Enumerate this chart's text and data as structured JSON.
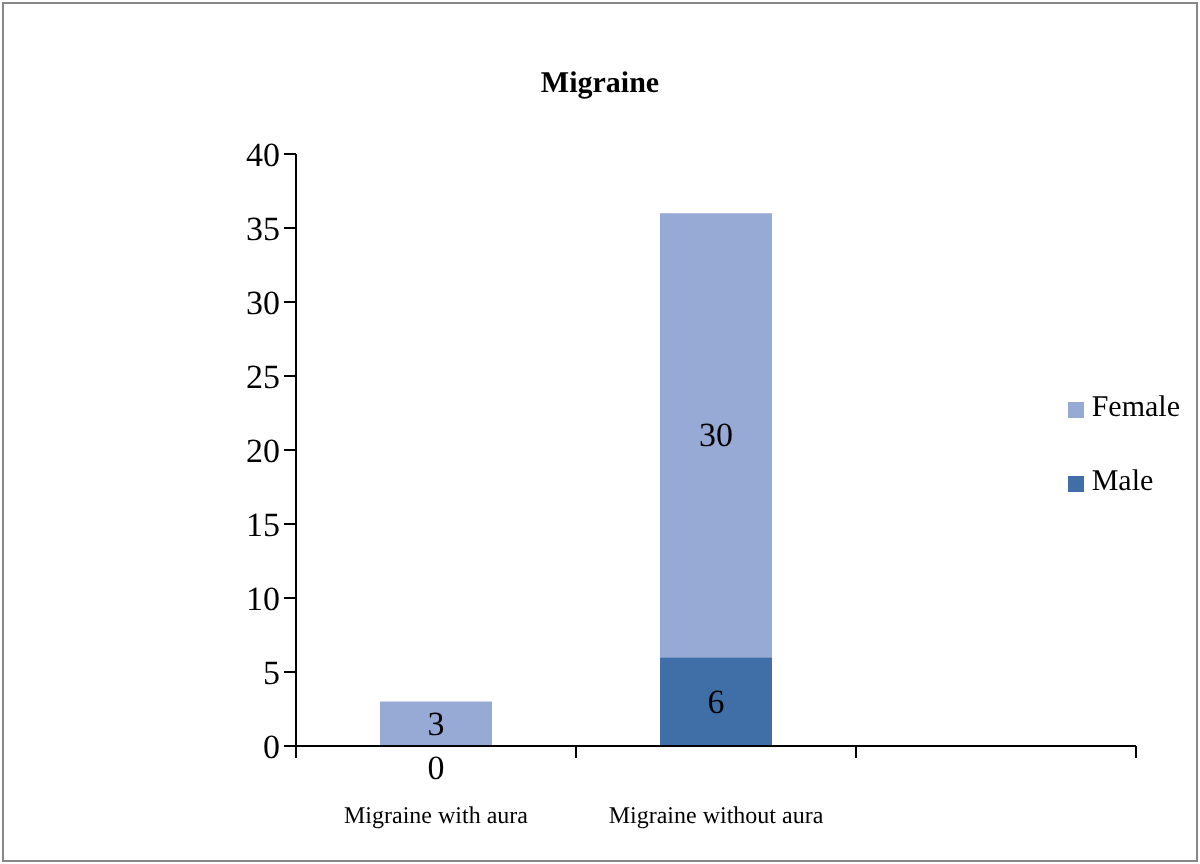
{
  "chart_data": {
    "type": "bar",
    "title": "Migraine",
    "categories": [
      "Migraine with aura",
      "Migraine without aura",
      null
    ],
    "stacked": true,
    "series": [
      {
        "name": "Male",
        "color": "#3f6fa6",
        "values": [
          0,
          6,
          null
        ]
      },
      {
        "name": "Female",
        "color": "#97a9d5",
        "values": [
          3,
          30,
          null
        ]
      }
    ],
    "ylim": [
      0,
      40
    ],
    "yticks": [
      0,
      5,
      10,
      15,
      20,
      25,
      30,
      35,
      40
    ],
    "data_labels": true,
    "grid": false,
    "legend": "right"
  }
}
